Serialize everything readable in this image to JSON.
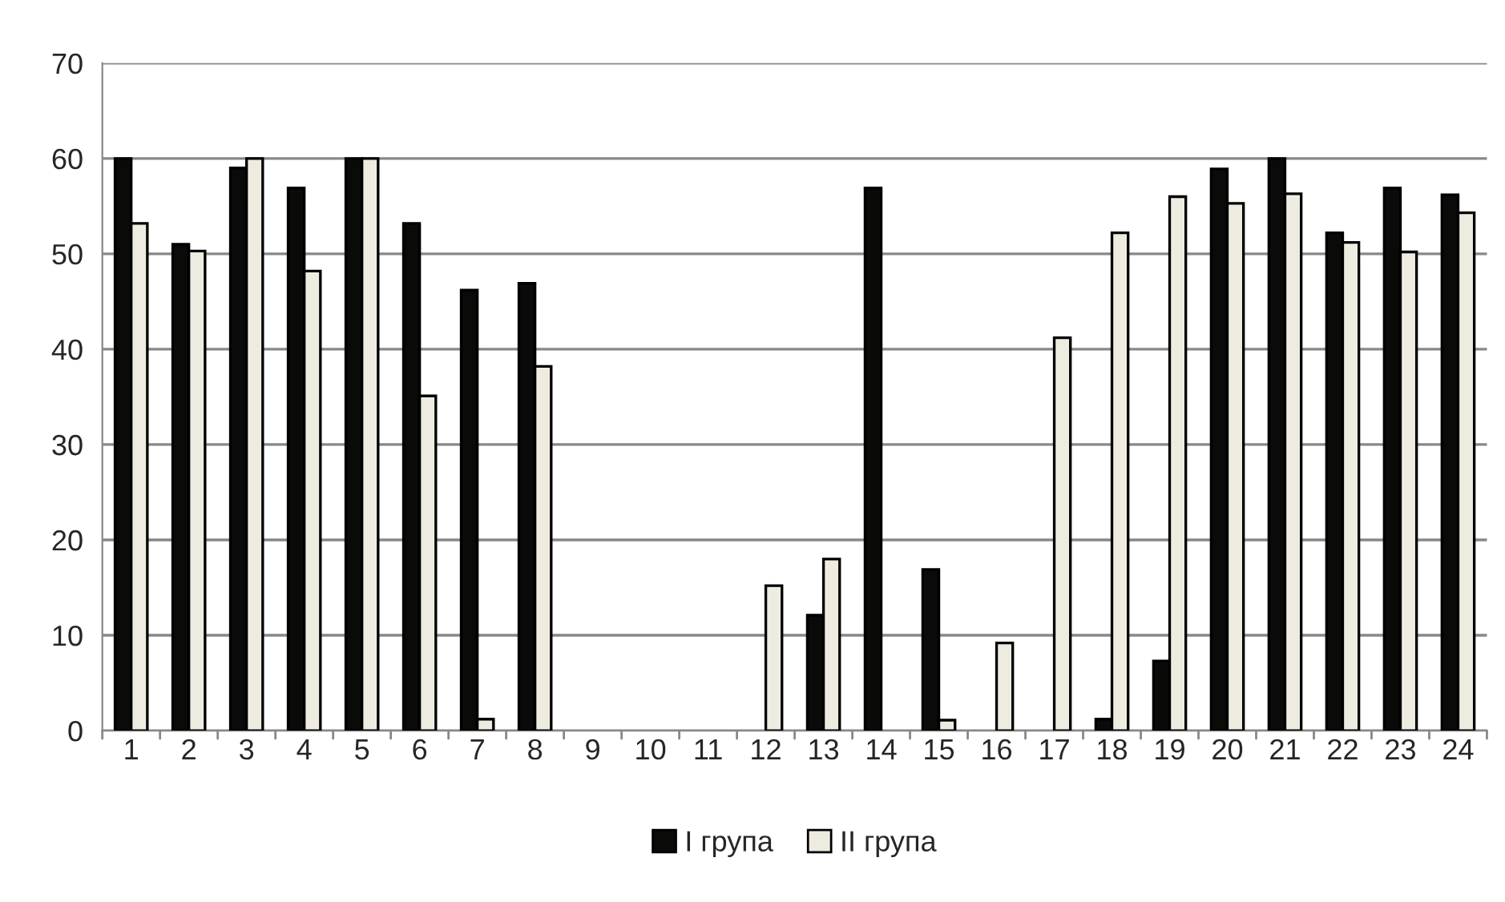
{
  "chart_data": {
    "type": "bar",
    "categories": [
      "1",
      "2",
      "3",
      "4",
      "5",
      "6",
      "7",
      "8",
      "9",
      "10",
      "11",
      "12",
      "13",
      "14",
      "15",
      "16",
      "17",
      "18",
      "19",
      "20",
      "21",
      "22",
      "23",
      "24"
    ],
    "series": [
      {
        "name": "I група",
        "color": "#0a0a08",
        "values": [
          60,
          51.0,
          59.0,
          56.9,
          60,
          53.2,
          46.2,
          46.9,
          null,
          null,
          null,
          null,
          12.1,
          56.9,
          16.9,
          null,
          null,
          1.2,
          7.3,
          58.9,
          60,
          52.2,
          56.9,
          56.2
        ]
      },
      {
        "name": "II група",
        "color": "#eeece1",
        "values": [
          53.2,
          50.3,
          60,
          48.2,
          60,
          35.1,
          1.2,
          38.2,
          null,
          null,
          null,
          15.2,
          18.0,
          null,
          1.1,
          9.2,
          41.2,
          52.2,
          56.0,
          55.3,
          56.3,
          51.2,
          50.2,
          54.3
        ]
      }
    ],
    "ylim": [
      0,
      70
    ],
    "yticks": [
      0,
      10,
      20,
      30,
      40,
      50,
      60,
      70
    ],
    "grid": "y",
    "legend": "bottom"
  }
}
